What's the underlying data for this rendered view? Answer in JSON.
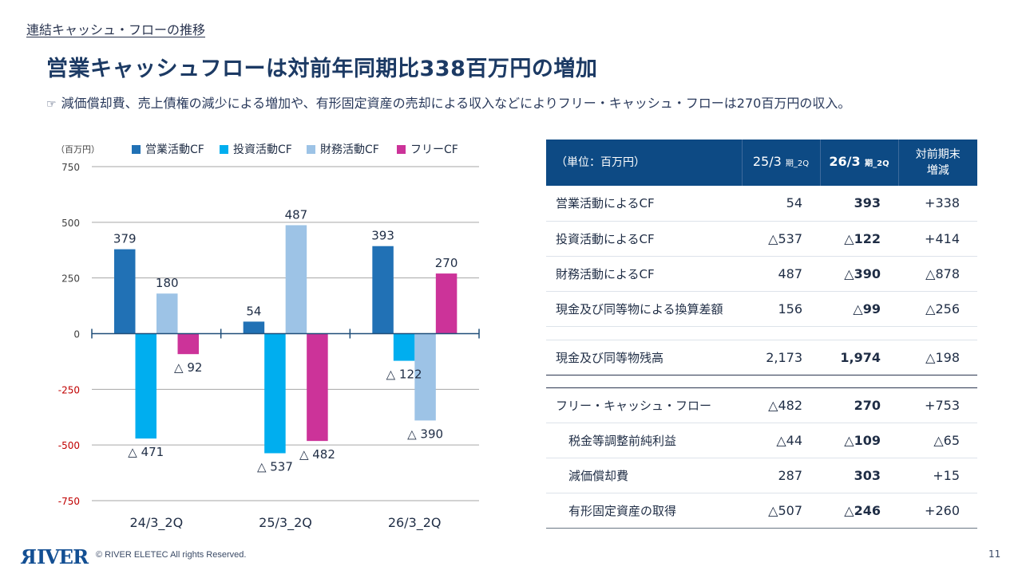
{
  "section_title": "連結キャッシュ・フローの推移",
  "headline": "営業キャッシュフローは対前年同期比338百万円の増加",
  "subline": {
    "icon": "pointing-hand-icon",
    "icon_glyph": "☞",
    "text": "減価償却費、売上債権の減少による増加や、有形固定資産の売却による収入などによりフリー・キャッシュ・フローは270百万円の収入。"
  },
  "chart_data": {
    "type": "bar",
    "title": "",
    "unit_label": "（百万円）",
    "xlabel": "",
    "ylabel": "（百万円）",
    "categories": [
      "24/3_2Q",
      "25/3_2Q",
      "26/3_2Q"
    ],
    "series": [
      {
        "name": "営業活動CF",
        "color": "#2171b5",
        "values": [
          379,
          54,
          393
        ],
        "labels": [
          "379",
          "54",
          "393"
        ]
      },
      {
        "name": "投資活動CF",
        "color": "#00aeef",
        "values": [
          -471,
          -537,
          -122
        ],
        "labels": [
          "△ 471",
          "△ 537",
          "△ 122"
        ]
      },
      {
        "name": "財務活動CF",
        "color": "#9dc3e6",
        "values": [
          180,
          487,
          -390
        ],
        "labels": [
          "180",
          "487",
          "△ 390"
        ]
      },
      {
        "name": "フリーCF",
        "color": "#cc3399",
        "values": [
          -92,
          -482,
          270
        ],
        "labels": [
          "△ 92",
          "△ 482",
          "270"
        ]
      }
    ],
    "ylim": [
      -750,
      750
    ],
    "yticks": [
      750,
      500,
      250,
      0,
      -250,
      -500,
      -750
    ],
    "ytick_labels": [
      "750",
      "500",
      "250",
      "0",
      "-250",
      "-500",
      "-750"
    ],
    "negative_tick_color": "#c00000",
    "grid": true,
    "legend": "top"
  },
  "table": {
    "header": {
      "unit": "（単位：百万円）",
      "col1_main": "25/3",
      "col1_small": "期_2Q",
      "col2_main": "26/3",
      "col2_small": "期_2Q",
      "col3_line1": "対前期末",
      "col3_line2": "増減"
    },
    "rows": [
      {
        "label": "営業活動によるCF",
        "prev": "54",
        "curr": "393",
        "diff": "+338"
      },
      {
        "label": "投資活動によるCF",
        "prev": "△537",
        "curr": "△122",
        "diff": "+414"
      },
      {
        "label": "財務活動によるCF",
        "prev": "487",
        "curr": "△390",
        "diff": "△878"
      },
      {
        "label": "現金及び同等物による換算差額",
        "prev": "156",
        "curr": "△99",
        "diff": "△256"
      },
      {
        "label": "現金及び同等物残高",
        "prev": "2,173",
        "curr": "1,974",
        "diff": "△198"
      },
      {
        "label": "フリー・キャッシュ・フロー",
        "prev": "△482",
        "curr": "270",
        "diff": "+753"
      },
      {
        "label": "税金等調整前純利益",
        "prev": "△44",
        "curr": "△109",
        "diff": "△65"
      },
      {
        "label": "減価償却費",
        "prev": "287",
        "curr": "303",
        "diff": "+15"
      },
      {
        "label": "有形固定資産の取得",
        "prev": "△507",
        "curr": "△246",
        "diff": "+260"
      }
    ]
  },
  "footer": {
    "logo": "RIVER",
    "copyright": "© RIVER ELETEC All rights Reserved.",
    "page_number": "11"
  }
}
